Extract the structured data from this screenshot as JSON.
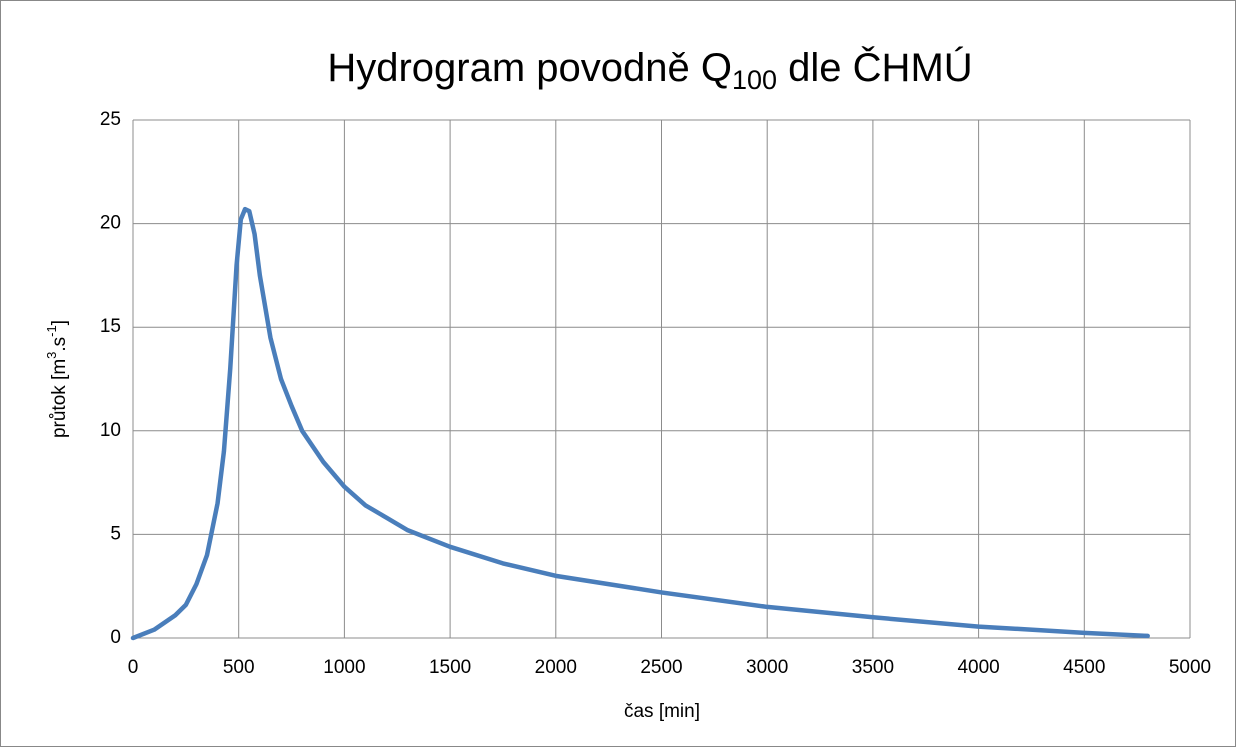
{
  "chart_data": {
    "type": "line",
    "title": [
      "Hydrogram povodně Q",
      "100",
      " dle ČHMÚ"
    ],
    "x_label": "čas [min]",
    "y_label": [
      "průtok  [m",
      "3",
      ".s",
      "-1",
      "]"
    ],
    "x": [
      0,
      100,
      200,
      250,
      300,
      350,
      400,
      430,
      460,
      490,
      510,
      530,
      550,
      575,
      600,
      650,
      700,
      750,
      800,
      900,
      1000,
      1100,
      1200,
      1300,
      1500,
      1750,
      2000,
      2500,
      3000,
      3500,
      4000,
      4500,
      4800
    ],
    "values": [
      0,
      0.4,
      1.1,
      1.6,
      2.6,
      4,
      6.5,
      9,
      13,
      18,
      20.2,
      20.7,
      20.6,
      19.5,
      17.5,
      14.5,
      12.5,
      11.2,
      10,
      8.5,
      7.3,
      6.4,
      5.8,
      5.2,
      4.4,
      3.6,
      3.0,
      2.2,
      1.5,
      1.0,
      0.55,
      0.25,
      0.1
    ],
    "color": "#4a7ebb",
    "xlim": [
      0,
      5000
    ],
    "xticks": [
      0,
      500,
      1000,
      1500,
      2000,
      2500,
      3000,
      3500,
      4000,
      4500,
      5000
    ],
    "ylim": [
      0,
      25
    ],
    "yticks": [
      0,
      5,
      10,
      15,
      20,
      25
    ],
    "grid": true
  }
}
